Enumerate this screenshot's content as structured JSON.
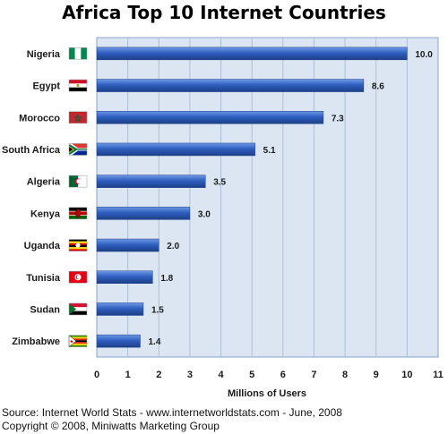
{
  "chart_data": {
    "type": "bar",
    "orientation": "horizontal",
    "title": "Africa Top 10 Internet Countries",
    "xlabel": "Millions of Users",
    "ylabel": "",
    "xlim": [
      0,
      11
    ],
    "x_ticks": [
      0,
      1,
      2,
      3,
      4,
      5,
      6,
      7,
      8,
      9,
      10,
      11
    ],
    "grid": "vertical",
    "categories": [
      "Nigeria",
      "Egypt",
      "Morocco",
      "South Africa",
      "Algeria",
      "Kenya",
      "Uganda",
      "Tunisia",
      "Sudan",
      "Zimbabwe"
    ],
    "values": [
      10.0,
      8.6,
      7.3,
      5.1,
      3.5,
      3.0,
      2.0,
      1.8,
      1.5,
      1.4
    ],
    "value_labels": [
      "10.0",
      "8.6",
      "7.3",
      "5.1",
      "3.5",
      "3.0",
      "2.0",
      "1.8",
      "1.5",
      "1.4"
    ],
    "flags": [
      "nigeria-flag-icon",
      "egypt-flag-icon",
      "morocco-flag-icon",
      "south-africa-flag-icon",
      "algeria-flag-icon",
      "kenya-flag-icon",
      "uganda-flag-icon",
      "tunisia-flag-icon",
      "sudan-flag-icon",
      "zimbabwe-flag-icon"
    ]
  },
  "colors": {
    "bar": "#2f5fbf",
    "bar_highlight": "#6f99e6",
    "bar_shadow": "#1d3f88",
    "plot_background": "#dce6f2",
    "grid": "#a9c0dc"
  },
  "footer": {
    "source": "Source: Internet World Stats  -  www.internetworldstats.com - June, 2008",
    "copyright": "Copyright © 2008, Miniwatts Marketing Group"
  }
}
